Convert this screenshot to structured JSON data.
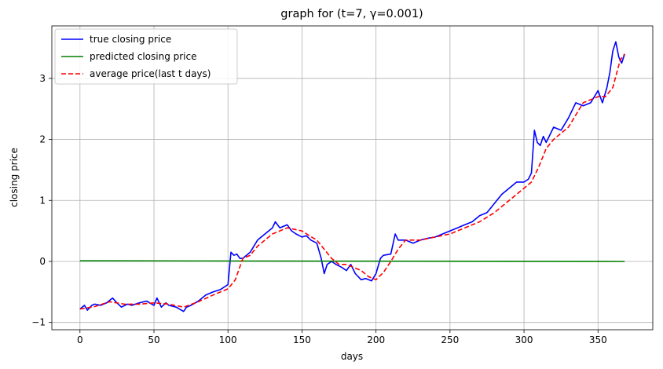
{
  "chart_data": {
    "type": "line",
    "title": "graph for (t=7, γ=0.001)",
    "xlabel": "days",
    "ylabel": "closing price",
    "xlim": [
      -19,
      387
    ],
    "ylim": [
      -1.12,
      3.86
    ],
    "xticks": [
      0,
      50,
      100,
      150,
      200,
      250,
      300,
      350
    ],
    "yticks": [
      -1,
      0,
      1,
      2,
      3
    ],
    "grid": true,
    "legend_position": "top-left",
    "series": [
      {
        "name": "true closing price",
        "color": "#0000ff",
        "style": "solid",
        "x": [
          0,
          3,
          5,
          8,
          10,
          14,
          18,
          22,
          25,
          28,
          32,
          35,
          40,
          45,
          50,
          52,
          55,
          58,
          60,
          65,
          70,
          72,
          75,
          80,
          85,
          90,
          95,
          100,
          102,
          104,
          106,
          108,
          110,
          115,
          120,
          125,
          130,
          132,
          135,
          140,
          143,
          146,
          150,
          153,
          156,
          160,
          163,
          165,
          167,
          170,
          173,
          177,
          180,
          183,
          186,
          190,
          193,
          197,
          200,
          203,
          205,
          210,
          213,
          215,
          220,
          225,
          230,
          235,
          240,
          245,
          250,
          255,
          260,
          265,
          270,
          275,
          280,
          285,
          290,
          295,
          300,
          303,
          305,
          307,
          309,
          311,
          313,
          315,
          320,
          325,
          330,
          335,
          340,
          345,
          350,
          353,
          356,
          358,
          360,
          362,
          364,
          366,
          368
        ],
        "values": [
          -0.78,
          -0.72,
          -0.8,
          -0.72,
          -0.7,
          -0.72,
          -0.68,
          -0.6,
          -0.68,
          -0.75,
          -0.7,
          -0.72,
          -0.68,
          -0.65,
          -0.72,
          -0.6,
          -0.75,
          -0.68,
          -0.72,
          -0.75,
          -0.82,
          -0.75,
          -0.72,
          -0.65,
          -0.55,
          -0.5,
          -0.46,
          -0.38,
          0.15,
          0.1,
          0.12,
          0.05,
          0.05,
          0.15,
          0.35,
          0.45,
          0.55,
          0.65,
          0.55,
          0.6,
          0.5,
          0.45,
          0.4,
          0.42,
          0.35,
          0.3,
          0.05,
          -0.2,
          -0.05,
          0.0,
          -0.05,
          -0.1,
          -0.15,
          -0.05,
          -0.2,
          -0.3,
          -0.28,
          -0.32,
          -0.2,
          0.05,
          0.1,
          0.12,
          0.45,
          0.35,
          0.35,
          0.3,
          0.35,
          0.38,
          0.4,
          0.45,
          0.5,
          0.55,
          0.6,
          0.65,
          0.75,
          0.8,
          0.95,
          1.1,
          1.2,
          1.3,
          1.3,
          1.35,
          1.45,
          2.15,
          1.95,
          1.9,
          2.05,
          1.95,
          2.2,
          2.15,
          2.35,
          2.6,
          2.55,
          2.6,
          2.8,
          2.6,
          2.85,
          3.1,
          3.45,
          3.6,
          3.35,
          3.25,
          3.4
        ]
      },
      {
        "name": "predicted closing price",
        "color": "#008000",
        "style": "solid",
        "x": [
          0,
          368
        ],
        "values": [
          0.01,
          0.0
        ]
      },
      {
        "name": "average price(last t days)",
        "color": "#ff0000",
        "style": "dashed",
        "x": [
          0,
          10,
          20,
          30,
          40,
          50,
          60,
          70,
          80,
          90,
          100,
          105,
          110,
          115,
          120,
          130,
          140,
          150,
          155,
          160,
          165,
          170,
          175,
          180,
          185,
          190,
          195,
          200,
          205,
          210,
          215,
          220,
          230,
          240,
          250,
          260,
          270,
          280,
          290,
          300,
          305,
          310,
          315,
          320,
          330,
          340,
          350,
          355,
          360,
          365,
          368
        ],
        "values": [
          -0.78,
          -0.74,
          -0.66,
          -0.7,
          -0.7,
          -0.68,
          -0.7,
          -0.75,
          -0.66,
          -0.55,
          -0.45,
          -0.3,
          0.05,
          0.1,
          0.25,
          0.45,
          0.55,
          0.5,
          0.42,
          0.35,
          0.2,
          0.05,
          -0.05,
          -0.05,
          -0.1,
          -0.15,
          -0.25,
          -0.3,
          -0.18,
          0.0,
          0.2,
          0.35,
          0.35,
          0.4,
          0.45,
          0.55,
          0.65,
          0.8,
          1.0,
          1.2,
          1.3,
          1.55,
          1.85,
          2.0,
          2.2,
          2.6,
          2.7,
          2.7,
          2.85,
          3.3,
          3.4
        ]
      }
    ]
  }
}
